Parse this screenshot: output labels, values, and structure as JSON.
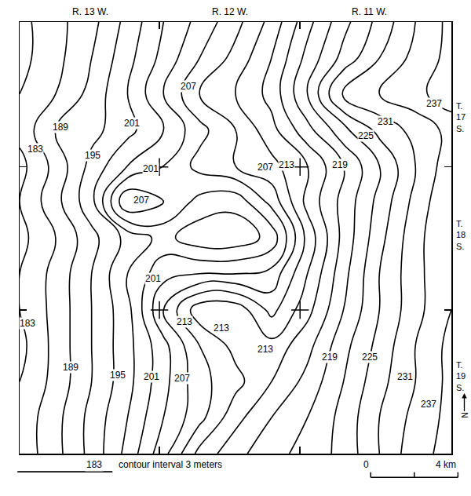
{
  "chart_data": {
    "type": "contour",
    "color": "#000000",
    "tick_labels": false,
    "grid": false,
    "marker": "cross-thin",
    "contour_interval": 3,
    "contour_start": 183,
    "contour_end": 237,
    "xlim": [
      0,
      19.8
    ],
    "ylim": [
      0,
      19.8
    ],
    "xticks": [
      6.41,
      12.86
    ],
    "yticks": [
      6.59,
      13.15
    ],
    "x": [
      0,
      1.65,
      3.3,
      4.95,
      6.6,
      8.25,
      9.9,
      11.55,
      13.2,
      14.85,
      16.5,
      18.15,
      19.8
    ],
    "y": [
      0,
      1.65,
      3.3,
      4.95,
      6.6,
      8.25,
      9.9,
      11.55,
      13.2,
      14.85,
      16.5,
      18.15,
      19.8
    ],
    "z": [
      [
        184,
        188,
        193,
        199,
        206,
        214,
        218,
        221,
        223,
        226,
        231,
        236,
        238
      ],
      [
        184,
        188,
        193,
        198,
        204,
        209,
        215,
        219,
        222,
        226,
        231,
        235,
        238
      ],
      [
        183,
        187,
        192,
        197,
        203,
        209,
        212,
        216,
        220,
        225,
        230,
        234,
        238
      ],
      [
        182,
        187,
        192,
        197,
        203,
        210,
        214,
        214,
        218,
        224,
        229,
        234,
        238
      ],
      [
        183,
        187,
        192,
        197,
        207,
        215,
        215,
        209,
        215,
        222,
        228,
        233,
        237
      ],
      [
        183,
        187,
        192,
        198,
        203,
        204,
        204,
        205,
        213,
        221,
        228,
        233,
        237
      ],
      [
        182,
        186,
        191,
        196,
        199,
        196,
        196,
        199,
        211,
        220,
        227,
        233,
        237
      ],
      [
        183,
        188,
        194,
        207,
        204,
        200,
        199,
        205,
        214,
        220,
        226,
        232,
        237
      ],
      [
        182,
        187,
        193,
        198,
        201,
        205,
        207,
        209,
        213,
        219,
        225,
        231,
        236
      ],
      [
        184,
        189,
        191,
        194,
        198,
        203,
        207,
        212,
        218,
        224,
        229,
        232,
        235
      ],
      [
        183,
        186,
        190,
        195,
        201,
        207,
        210,
        214,
        222,
        232,
        234,
        236,
        239
      ],
      [
        182,
        185,
        189,
        194,
        199,
        204,
        208,
        213,
        220,
        226,
        231,
        235,
        238
      ],
      [
        182,
        185,
        188,
        193,
        198,
        202,
        206,
        211,
        218,
        224,
        229,
        234,
        238
      ]
    ],
    "labels": [
      {
        "value": 183,
        "x": 0.72,
        "y": 13.98
      },
      {
        "value": 189,
        "x": 1.87,
        "y": 14.96
      },
      {
        "value": 195,
        "x": 3.35,
        "y": 13.69
      },
      {
        "value": 201,
        "x": 5.15,
        "y": 15.14
      },
      {
        "value": 207,
        "x": 7.75,
        "y": 16.86
      },
      {
        "value": 201,
        "x": 6.02,
        "y": 13.08
      },
      {
        "value": 207,
        "x": 5.59,
        "y": 11.64
      },
      {
        "value": 207,
        "x": 11.28,
        "y": 13.15
      },
      {
        "value": 213,
        "x": 12.25,
        "y": 13.26
      },
      {
        "value": 219,
        "x": 14.67,
        "y": 13.26
      },
      {
        "value": 225,
        "x": 15.86,
        "y": 14.59
      },
      {
        "value": 231,
        "x": 16.76,
        "y": 15.24
      },
      {
        "value": 237,
        "x": 18.99,
        "y": 16.04
      },
      {
        "value": 183,
        "x": 0.36,
        "y": 5.98
      },
      {
        "value": 189,
        "x": 2.34,
        "y": 3.96
      },
      {
        "value": 195,
        "x": 4.5,
        "y": 3.6
      },
      {
        "value": 201,
        "x": 6.05,
        "y": 3.53
      },
      {
        "value": 207,
        "x": 7.46,
        "y": 3.46
      },
      {
        "value": 213,
        "x": 7.57,
        "y": 6.05
      },
      {
        "value": 213,
        "x": 9.26,
        "y": 5.77
      },
      {
        "value": 213,
        "x": 11.28,
        "y": 4.79
      },
      {
        "value": 219,
        "x": 14.23,
        "y": 4.43
      },
      {
        "value": 225,
        "x": 16.04,
        "y": 4.43
      },
      {
        "value": 231,
        "x": 17.66,
        "y": 3.53
      },
      {
        "value": 237,
        "x": 18.74,
        "y": 2.27
      },
      {
        "value": 201,
        "x": 6.13,
        "y": 8.04
      }
    ],
    "ranges": [
      {
        "label": "R. 13 W.",
        "x": 3.24
      },
      {
        "label": "R. 12 W.",
        "x": 9.66
      },
      {
        "label": "R. 11 W.",
        "x": 16.04
      }
    ],
    "townships": [
      {
        "label": "T. 17 S.",
        "y": 15.42
      },
      {
        "label": "T. 18 S.",
        "y": 10.02
      },
      {
        "label": "T. 19 S.",
        "y": 3.53
      }
    ],
    "legend_sample_label": "183",
    "legend_text": "contour interval 3 meters",
    "scale_bar": {
      "start": 16.1,
      "ticks": [
        0,
        2,
        4
      ],
      "labels": [
        {
          "value": 0,
          "label": "0"
        },
        {
          "value": 4,
          "label": "4 km"
        }
      ]
    },
    "north_label": "N"
  }
}
